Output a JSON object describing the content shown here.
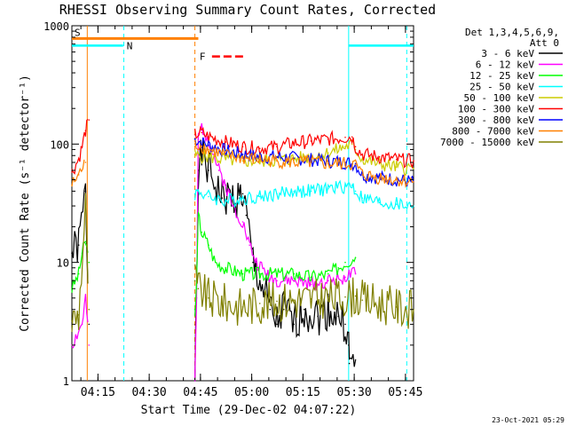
{
  "chart_data": {
    "type": "line",
    "title": "RHESSI Observing Summary Count Rates, Corrected",
    "xlabel": "Start Time (29-Dec-02 04:07:22)",
    "ylabel": "Corrected Count Rate (s⁻¹ detector⁻¹)",
    "yscale": "log",
    "ylim": [
      1,
      1000
    ],
    "xlim_minutes": [
      0,
      100
    ],
    "xticks": [
      {
        "m": 7.63,
        "label": "04:15"
      },
      {
        "m": 22.63,
        "label": "04:30"
      },
      {
        "m": 37.63,
        "label": "04:45"
      },
      {
        "m": 52.63,
        "label": "05:00"
      },
      {
        "m": 67.63,
        "label": "05:15"
      },
      {
        "m": 82.63,
        "label": "05:30"
      },
      {
        "m": 97.63,
        "label": "05:45"
      }
    ],
    "yticks": [
      {
        "v": 1,
        "label": "1"
      },
      {
        "v": 10,
        "label": "10"
      },
      {
        "v": 100,
        "label": "100"
      },
      {
        "v": 1000,
        "label": "1000"
      }
    ],
    "legend_header": [
      "Det 1,3,4,5,6,9,",
      "Att 0"
    ],
    "legend_position": "right",
    "series": [
      {
        "name": "3 - 6 keV",
        "color": "#000000",
        "points": [
          [
            0,
            12
          ],
          [
            2,
            14
          ],
          [
            4,
            40
          ],
          [
            5,
            3
          ],
          [
            36,
            1
          ],
          [
            36.2,
            3
          ],
          [
            37,
            60
          ],
          [
            38,
            80
          ],
          [
            40,
            60
          ],
          [
            44,
            35
          ],
          [
            49,
            35
          ],
          [
            50,
            38
          ],
          [
            51,
            25
          ],
          [
            53,
            10
          ],
          [
            55,
            7
          ],
          [
            58,
            4
          ],
          [
            60,
            3
          ],
          [
            62,
            4
          ],
          [
            65,
            3
          ],
          [
            68,
            4
          ],
          [
            72,
            3.5
          ],
          [
            75,
            4
          ],
          [
            78,
            3.5
          ],
          [
            80,
            3
          ],
          [
            81,
            2
          ],
          [
            81.2,
            1.4
          ],
          [
            83,
            1.5
          ]
        ]
      },
      {
        "name": "6 - 12 keV",
        "color": "#ff00ff",
        "points": [
          [
            0,
            2
          ],
          [
            3,
            3
          ],
          [
            4,
            5
          ],
          [
            5,
            2
          ],
          [
            36,
            1
          ],
          [
            36.5,
            5
          ],
          [
            37,
            110
          ],
          [
            38,
            140
          ],
          [
            40,
            110
          ],
          [
            43,
            60
          ],
          [
            45,
            45
          ],
          [
            47,
            30
          ],
          [
            50,
            22
          ],
          [
            52,
            14
          ],
          [
            54,
            10
          ],
          [
            57,
            8
          ],
          [
            60,
            7
          ],
          [
            65,
            7
          ],
          [
            70,
            6.5
          ],
          [
            75,
            7
          ],
          [
            80,
            7.5
          ],
          [
            83,
            8
          ]
        ]
      },
      {
        "name": "12 - 25 keV",
        "color": "#00ff00",
        "points": [
          [
            0,
            6
          ],
          [
            2,
            8
          ],
          [
            3,
            12
          ],
          [
            4,
            15
          ],
          [
            5,
            10
          ],
          [
            36,
            4
          ],
          [
            36.5,
            6
          ],
          [
            37,
            25
          ],
          [
            38,
            18
          ],
          [
            40,
            14
          ],
          [
            42,
            10
          ],
          [
            45,
            9
          ],
          [
            50,
            8
          ],
          [
            55,
            8
          ],
          [
            60,
            8
          ],
          [
            65,
            8
          ],
          [
            70,
            7.5
          ],
          [
            75,
            8
          ],
          [
            78,
            9
          ],
          [
            80,
            10
          ],
          [
            83,
            11
          ]
        ]
      },
      {
        "name": "25 - 50 keV",
        "color": "#00ffff",
        "points": [
          [
            36,
            38
          ],
          [
            37,
            40
          ],
          [
            40,
            36
          ],
          [
            45,
            33
          ],
          [
            50,
            35
          ],
          [
            55,
            36
          ],
          [
            60,
            38
          ],
          [
            65,
            40
          ],
          [
            70,
            40
          ],
          [
            75,
            42
          ],
          [
            80,
            44
          ],
          [
            82,
            45
          ],
          [
            83,
            40
          ],
          [
            85,
            35
          ],
          [
            90,
            32
          ],
          [
            95,
            31
          ],
          [
            100,
            30
          ]
        ]
      },
      {
        "name": "50 - 100 keV",
        "color": "#cccc00",
        "points": [
          [
            36,
            80
          ],
          [
            40,
            78
          ],
          [
            45,
            74
          ],
          [
            50,
            72
          ],
          [
            55,
            72
          ],
          [
            60,
            73
          ],
          [
            65,
            75
          ],
          [
            70,
            78
          ],
          [
            75,
            84
          ],
          [
            80,
            95
          ],
          [
            82,
            100
          ],
          [
            83,
            90
          ],
          [
            85,
            75
          ],
          [
            90,
            68
          ],
          [
            95,
            64
          ],
          [
            100,
            62
          ]
        ]
      },
      {
        "name": "100 - 300 keV",
        "color": "#ff0000",
        "points": [
          [
            0,
            58
          ],
          [
            2,
            75
          ],
          [
            3,
            95
          ],
          [
            4,
            130
          ],
          [
            5,
            160
          ],
          [
            36,
            120
          ],
          [
            38,
            125
          ],
          [
            40,
            115
          ],
          [
            45,
            104
          ],
          [
            50,
            95
          ],
          [
            55,
            92
          ],
          [
            60,
            95
          ],
          [
            65,
            102
          ],
          [
            70,
            106
          ],
          [
            75,
            110
          ],
          [
            80,
            114
          ],
          [
            82,
            115
          ],
          [
            83,
            95
          ],
          [
            85,
            82
          ],
          [
            90,
            78
          ],
          [
            95,
            74
          ],
          [
            100,
            72
          ]
        ]
      },
      {
        "name": "300 - 800 keV",
        "color": "#0000ff",
        "points": [
          [
            36,
            110
          ],
          [
            40,
            98
          ],
          [
            45,
            88
          ],
          [
            50,
            82
          ],
          [
            55,
            78
          ],
          [
            60,
            78
          ],
          [
            65,
            76
          ],
          [
            70,
            74
          ],
          [
            75,
            72
          ],
          [
            80,
            70
          ],
          [
            83,
            68
          ],
          [
            85,
            55
          ],
          [
            90,
            52
          ],
          [
            95,
            50
          ],
          [
            100,
            48
          ]
        ]
      },
      {
        "name": "800 - 7000 keV",
        "color": "#ff8000",
        "points": [
          [
            0,
            45
          ],
          [
            2,
            55
          ],
          [
            4,
            70
          ],
          [
            36,
            100
          ],
          [
            38,
            96
          ],
          [
            40,
            90
          ],
          [
            45,
            80
          ],
          [
            50,
            76
          ],
          [
            55,
            74
          ],
          [
            60,
            72
          ],
          [
            65,
            70
          ],
          [
            70,
            70
          ],
          [
            75,
            68
          ],
          [
            80,
            68
          ],
          [
            83,
            67
          ],
          [
            85,
            55
          ],
          [
            90,
            52
          ],
          [
            95,
            50
          ],
          [
            100,
            48
          ]
        ]
      },
      {
        "name": "7000 - 15000 keV",
        "color": "#808000",
        "points": [
          [
            0,
            3.2
          ],
          [
            2,
            3.6
          ],
          [
            4,
            30
          ],
          [
            5,
            4
          ],
          [
            36,
            7
          ],
          [
            37,
            6
          ],
          [
            40,
            5
          ],
          [
            45,
            4.5
          ],
          [
            50,
            4.2
          ],
          [
            55,
            4.5
          ],
          [
            60,
            4.7
          ],
          [
            65,
            4.8
          ],
          [
            70,
            4.9
          ],
          [
            75,
            5
          ],
          [
            80,
            5.1
          ],
          [
            83,
            5.2
          ],
          [
            85,
            4.8
          ],
          [
            90,
            4.5
          ],
          [
            95,
            4.2
          ],
          [
            100,
            4
          ]
        ]
      }
    ],
    "flags": [
      {
        "code": "S",
        "label": "S",
        "color": "#ff8000",
        "m_from": 0,
        "m_to": 37,
        "v": 780
      },
      {
        "code": "N",
        "label": "N",
        "color": "#00ffff",
        "m_from": 0,
        "m_to": 15,
        "v": 680
      },
      {
        "code": "F",
        "label": "F",
        "color": "#ff0000",
        "m_from": 41,
        "m_to": 51,
        "v": 550
      },
      {
        "code": "N2",
        "label": "",
        "color": "#00ffff",
        "m_from": 81,
        "m_to": 100,
        "v": 680
      }
    ],
    "vlines": [
      {
        "m": 4.5,
        "color": "#ff8000",
        "style": "solid"
      },
      {
        "m": 15.2,
        "color": "#00ffff",
        "style": "dashed"
      },
      {
        "m": 36.0,
        "color": "#ff8000",
        "style": "dashed"
      },
      {
        "m": 81.0,
        "color": "#00ffff",
        "style": "solid"
      },
      {
        "m": 98.0,
        "color": "#00ffff",
        "style": "dashed"
      }
    ]
  },
  "footer_timestamp": "23-Oct-2021 05:29"
}
